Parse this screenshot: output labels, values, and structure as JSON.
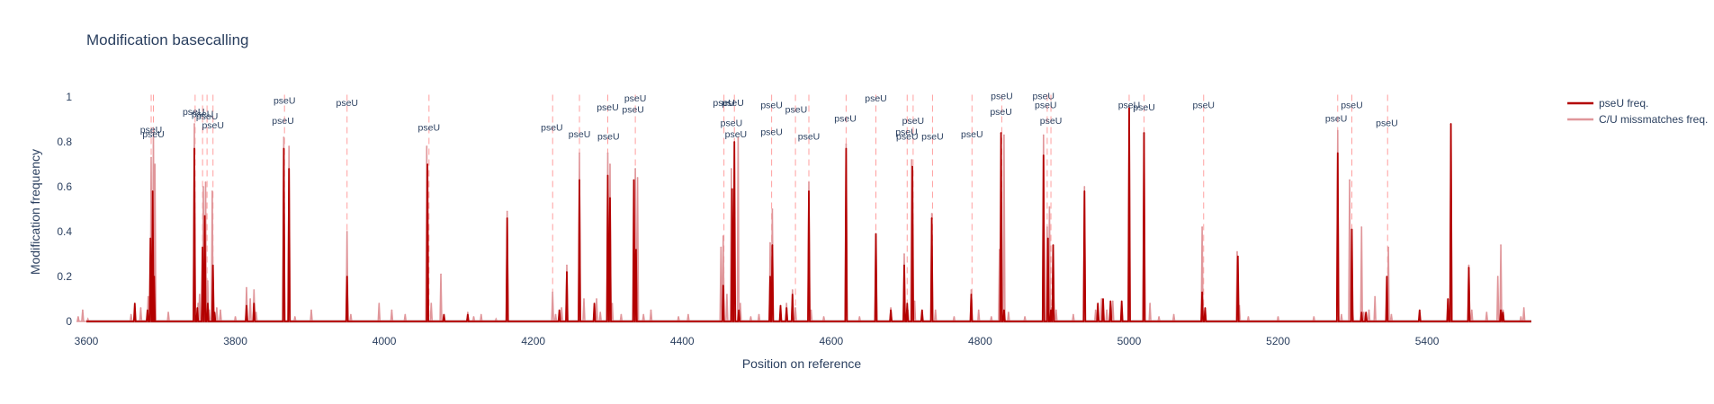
{
  "chart_data": {
    "type": "line",
    "title": "Modification basecalling",
    "xlabel": "Position on reference",
    "ylabel": "Modification frequency",
    "xlim": [
      3600,
      5540
    ],
    "ylim": [
      0,
      1
    ],
    "x_ticks": [
      3600,
      3800,
      4000,
      4200,
      4400,
      4600,
      4800,
      5000,
      5200,
      5400
    ],
    "y_ticks": [
      0,
      0.2,
      0.4,
      0.6,
      0.8,
      1
    ],
    "y_tick_labels": [
      "0",
      "0.2",
      "0.4",
      "0.6",
      "0.8",
      "1"
    ],
    "legend_position": "top-right",
    "series": [
      {
        "name": "C/U missmatches freq.",
        "color": "#e0969a",
        "x": [
          3589,
          3595,
          3602,
          3660,
          3665,
          3673,
          3683,
          3687,
          3690,
          3692,
          3710,
          3745,
          3750,
          3752,
          3757,
          3760,
          3763,
          3765,
          3769,
          3771,
          3775,
          3780,
          3800,
          3815,
          3820,
          3825,
          3828,
          3865,
          3872,
          3880,
          3902,
          3950,
          3955,
          3993,
          4010,
          4028,
          4057,
          4063,
          4076,
          4112,
          4120,
          4130,
          4150,
          4165,
          4226,
          4230,
          4238,
          4245,
          4262,
          4268,
          4282,
          4285,
          4290,
          4300,
          4303,
          4306,
          4318,
          4337,
          4340,
          4348,
          4358,
          4395,
          4408,
          4452,
          4455,
          4460,
          4466,
          4470,
          4475,
          4478,
          4492,
          4503,
          4518,
          4521,
          4532,
          4540,
          4548,
          4552,
          4570,
          4573,
          4590,
          4620,
          4638,
          4660,
          4680,
          4698,
          4703,
          4708,
          4712,
          4722,
          4735,
          4740,
          4765,
          4788,
          4798,
          4815,
          4826,
          4832,
          4838,
          4860,
          4885,
          4890,
          4893,
          4895,
          4898,
          4902,
          4925,
          4940,
          4955,
          4963,
          4970,
          4978,
          4990,
          5000,
          5020,
          5028,
          5040,
          5060,
          5098,
          5102,
          5145,
          5148,
          5160,
          5200,
          5248,
          5280,
          5285,
          5296,
          5300,
          5312,
          5315,
          5322,
          5330,
          5348,
          5352,
          5390,
          5432,
          5456,
          5460,
          5480,
          5495,
          5499,
          5502,
          5526,
          5530
        ],
        "y": [
          0.02,
          0.05,
          0.01,
          0.03,
          0.04,
          0.06,
          0.11,
          0.73,
          0.85,
          0.7,
          0.04,
          0.88,
          0.08,
          0.12,
          0.6,
          0.62,
          0.18,
          0.05,
          0.58,
          0.05,
          0.06,
          0.05,
          0.02,
          0.15,
          0.1,
          0.14,
          0.04,
          0.82,
          0.78,
          0.02,
          0.05,
          0.4,
          0.03,
          0.08,
          0.05,
          0.03,
          0.78,
          0.08,
          0.21,
          0.04,
          0.02,
          0.03,
          0.01,
          0.49,
          0.13,
          0.03,
          0.06,
          0.25,
          0.75,
          0.1,
          0.06,
          0.1,
          0.04,
          0.75,
          0.7,
          0.08,
          0.03,
          0.68,
          0.64,
          0.03,
          0.05,
          0.02,
          0.03,
          0.33,
          0.38,
          0.12,
          0.68,
          0.1,
          0.82,
          0.08,
          0.02,
          0.03,
          0.35,
          0.5,
          0.03,
          0.08,
          0.14,
          0.06,
          0.62,
          0.05,
          0.02,
          0.79,
          0.02,
          0.38,
          0.06,
          0.3,
          0.05,
          0.72,
          0.09,
          0.03,
          0.48,
          0.05,
          0.02,
          0.14,
          0.05,
          0.02,
          0.32,
          0.83,
          0.04,
          0.02,
          0.83,
          0.42,
          0.51,
          0.06,
          0.3,
          0.05,
          0.03,
          0.6,
          0.05,
          0.1,
          0.05,
          0.09,
          0.07,
          0.96,
          0.84,
          0.08,
          0.02,
          0.03,
          0.42,
          0.05,
          0.31,
          0.07,
          0.02,
          0.02,
          0.02,
          0.85,
          0.03,
          0.63,
          0.05,
          0.42,
          0.04,
          0.05,
          0.11,
          0.33,
          0.03,
          0.03,
          0.88,
          0.25,
          0.05,
          0.04,
          0.2,
          0.34,
          0.05,
          0.02,
          0.06
        ]
      },
      {
        "name": "pseU freq.",
        "color": "#b30000",
        "x": [
          3665,
          3682,
          3686,
          3689,
          3691,
          3745,
          3749,
          3756,
          3759,
          3763,
          3770,
          3772,
          3815,
          3825,
          3865,
          3872,
          3950,
          4058,
          4080,
          4112,
          4165,
          4235,
          4245,
          4262,
          4282,
          4300,
          4303,
          4335,
          4338,
          4455,
          4467,
          4470,
          4476,
          4518,
          4521,
          4532,
          4540,
          4548,
          4570,
          4620,
          4660,
          4680,
          4698,
          4702,
          4709,
          4722,
          4735,
          4788,
          4828,
          4832,
          4885,
          4891,
          4895,
          4898,
          4940,
          4958,
          4965,
          4975,
          4990,
          5000,
          5020,
          5098,
          5102,
          5146,
          5280,
          5299,
          5312,
          5318,
          5346,
          5390,
          5428,
          5432,
          5456,
          5499,
          5502
        ],
        "y": [
          0.08,
          0.05,
          0.37,
          0.58,
          0.2,
          0.77,
          0.06,
          0.33,
          0.47,
          0.08,
          0.25,
          0.04,
          0.07,
          0.08,
          0.77,
          0.68,
          0.2,
          0.7,
          0.03,
          0.03,
          0.46,
          0.05,
          0.22,
          0.63,
          0.08,
          0.65,
          0.55,
          0.63,
          0.32,
          0.16,
          0.59,
          0.8,
          0.05,
          0.2,
          0.34,
          0.07,
          0.06,
          0.12,
          0.58,
          0.77,
          0.39,
          0.05,
          0.25,
          0.08,
          0.69,
          0.05,
          0.46,
          0.12,
          0.84,
          0.05,
          0.74,
          0.37,
          0.05,
          0.34,
          0.58,
          0.08,
          0.1,
          0.09,
          0.09,
          0.95,
          0.84,
          0.13,
          0.06,
          0.29,
          0.75,
          0.41,
          0.04,
          0.04,
          0.2,
          0.05,
          0.1,
          0.88,
          0.24,
          0.05,
          0.04
        ]
      }
    ],
    "annotations": [
      {
        "text": "pseU",
        "x": 3687,
        "y": 0.84
      },
      {
        "text": "pseU",
        "x": 3690,
        "y": 0.82
      },
      {
        "text": "pseU",
        "x": 3744,
        "y": 0.92
      },
      {
        "text": "pseU",
        "x": 3756,
        "y": 0.91
      },
      {
        "text": "pseU",
        "x": 3762,
        "y": 0.9
      },
      {
        "text": "pseU",
        "x": 3770,
        "y": 0.86
      },
      {
        "text": "pseU",
        "x": 3866,
        "y": 0.97
      },
      {
        "text": "pseU",
        "x": 3864,
        "y": 0.88
      },
      {
        "text": "pseU",
        "x": 3950,
        "y": 0.96
      },
      {
        "text": "pseU",
        "x": 4060,
        "y": 0.85
      },
      {
        "text": "pseU",
        "x": 4225,
        "y": 0.85
      },
      {
        "text": "pseU",
        "x": 4262,
        "y": 0.82
      },
      {
        "text": "pseU",
        "x": 4300,
        "y": 0.94
      },
      {
        "text": "pseU",
        "x": 4337,
        "y": 0.98
      },
      {
        "text": "pseU",
        "x": 4334,
        "y": 0.93
      },
      {
        "text": "pseU",
        "x": 4301,
        "y": 0.81
      },
      {
        "text": "pseU",
        "x": 4456,
        "y": 0.96
      },
      {
        "text": "pseU",
        "x": 4468,
        "y": 0.96
      },
      {
        "text": "pseU",
        "x": 4466,
        "y": 0.87
      },
      {
        "text": "pseU",
        "x": 4472,
        "y": 0.82
      },
      {
        "text": "pseU",
        "x": 4520,
        "y": 0.95
      },
      {
        "text": "pseU",
        "x": 4520,
        "y": 0.83
      },
      {
        "text": "pseU",
        "x": 4553,
        "y": 0.93
      },
      {
        "text": "pseU",
        "x": 4570,
        "y": 0.81
      },
      {
        "text": "pseU",
        "x": 4619,
        "y": 0.89
      },
      {
        "text": "pseU",
        "x": 4660,
        "y": 0.98
      },
      {
        "text": "pseU",
        "x": 4701,
        "y": 0.83
      },
      {
        "text": "pseU",
        "x": 4702,
        "y": 0.81
      },
      {
        "text": "pseU",
        "x": 4710,
        "y": 0.88
      },
      {
        "text": "pseU",
        "x": 4736,
        "y": 0.81
      },
      {
        "text": "pseU",
        "x": 4789,
        "y": 0.82
      },
      {
        "text": "pseU",
        "x": 4829,
        "y": 0.99
      },
      {
        "text": "pseU",
        "x": 4828,
        "y": 0.92
      },
      {
        "text": "pseU",
        "x": 4885,
        "y": 0.99
      },
      {
        "text": "pseU",
        "x": 4888,
        "y": 0.95
      },
      {
        "text": "pseU",
        "x": 4895,
        "y": 0.88
      },
      {
        "text": "pseU",
        "x": 5000,
        "y": 0.95
      },
      {
        "text": "pseU",
        "x": 5020,
        "y": 0.94
      },
      {
        "text": "pseU",
        "x": 5100,
        "y": 0.95
      },
      {
        "text": "pseU",
        "x": 5278,
        "y": 0.89
      },
      {
        "text": "pseU",
        "x": 5299,
        "y": 0.95
      },
      {
        "text": "pseU",
        "x": 5346,
        "y": 0.87
      }
    ],
    "vlines_x": [
      3687,
      3690,
      3746,
      3756,
      3762,
      3770,
      3866,
      3950,
      4060,
      4226,
      4262,
      4300,
      4337,
      4456,
      4470,
      4520,
      4552,
      4570,
      4620,
      4660,
      4702,
      4710,
      4736,
      4789,
      4829,
      4890,
      4895,
      5000,
      5020,
      5100,
      5280,
      5299,
      5347
    ]
  }
}
